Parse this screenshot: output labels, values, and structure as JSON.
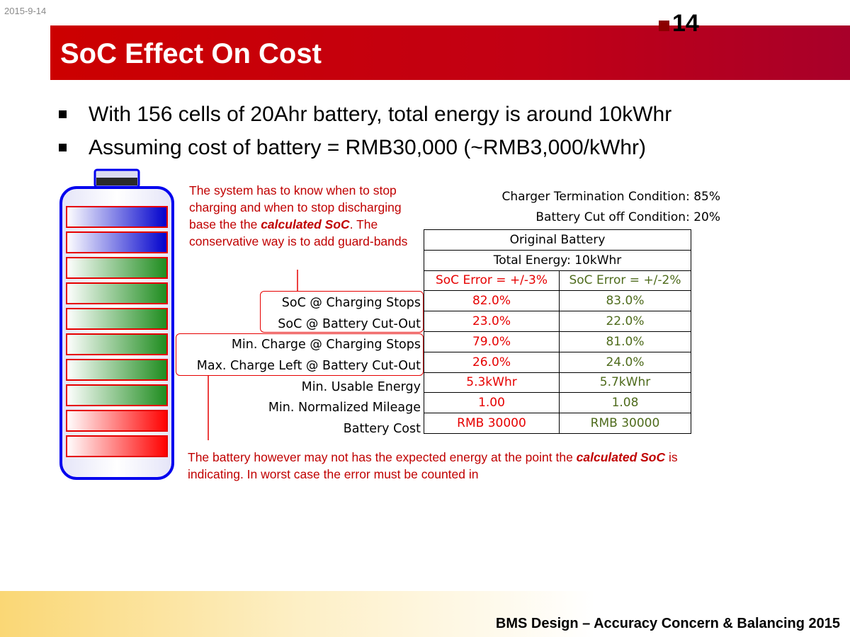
{
  "header": {
    "date": "2015-9-14",
    "page_number": "14",
    "title": "SoC Effect On Cost"
  },
  "bullets": [
    "With 156 cells of 20Ahr battery, total energy is around 10kWhr",
    "Assuming cost of battery = RMB30,000 (~RMB3,000/kWhr)"
  ],
  "notes": {
    "top_before": "The system has to know when to stop charging and when to stop discharging base the the ",
    "top_em": "calculated SoC",
    "top_after": ". The conservative way is to add guard-bands",
    "bottom_before": "The battery however may not has the expected energy at the point the ",
    "bottom_em": "calculated SoC",
    "bottom_after": " is indicating. In worst case the error must be counted in"
  },
  "conditions": {
    "charger": "Charger Termination Condition: 85%",
    "cutoff": "Battery Cut off Condition: 20%"
  },
  "table": {
    "header1": "Original Battery",
    "header2": "Total Energy: 10kWhr",
    "col1": "SoC Error = +/-3%",
    "col2": "SoC Error = +/-2%",
    "rows": [
      {
        "label": "SoC @ Charging Stops",
        "v1": "82.0%",
        "v2": "83.0%"
      },
      {
        "label": "SoC @ Battery Cut-Out",
        "v1": "23.0%",
        "v2": "22.0%"
      },
      {
        "label": "Min. Charge @ Charging Stops",
        "v1": "79.0%",
        "v2": "81.0%"
      },
      {
        "label": "Max. Charge Left @ Battery Cut-Out",
        "v1": "26.0%",
        "v2": "24.0%"
      },
      {
        "label": "Min. Usable Energy",
        "v1": "5.3kWhr",
        "v2": "5.7kWhr"
      },
      {
        "label": "Min. Normalized Mileage",
        "v1": "1.00",
        "v2": "1.08"
      },
      {
        "label": "Battery Cost",
        "v1": "RMB 30000",
        "v2": "RMB 30000"
      }
    ]
  },
  "battery": {
    "cells": [
      "blue",
      "blue",
      "green",
      "green",
      "green",
      "green",
      "green",
      "green",
      "red",
      "red"
    ]
  },
  "colors": {
    "title_bar": "#cc0000",
    "note_text": "#c00000",
    "col1_text": "#e60000",
    "col2_text": "#4e6b1c"
  },
  "footer": {
    "text": "BMS Design – Accuracy Concern & Balancing 2015"
  }
}
